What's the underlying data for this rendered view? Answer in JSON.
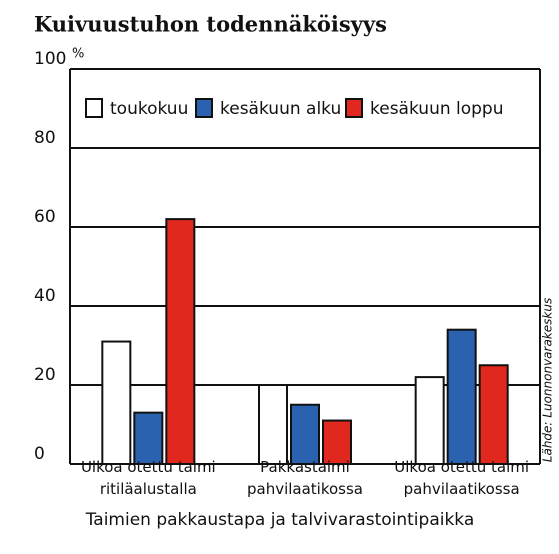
{
  "chart_data": {
    "type": "bar",
    "title": "Kuivuustuhon todennäköisyys",
    "y_label": "%",
    "x_label": "Taimien pakkaustapa ja talvivarastointipaikka",
    "source": "Lähde: Luonnonvarakeskus",
    "categories": [
      "Ulkoa otettu taimi ritiläalustalla",
      "Pakkastaimi pahvilaatikossa",
      "Ulkoa otettu taimi pahvilaatikossa"
    ],
    "series": [
      {
        "name": "toukokuu",
        "color": "#ffffff",
        "values": [
          31,
          20,
          22
        ]
      },
      {
        "name": "kesäkuun alku",
        "color": "#2a62b0",
        "values": [
          13,
          15,
          34
        ]
      },
      {
        "name": "kesäkuun loppu",
        "color": "#e0281e",
        "values": [
          62,
          11,
          25
        ]
      }
    ],
    "ylim": [
      0,
      100
    ],
    "yticks": [
      0,
      20,
      40,
      60,
      80,
      100
    ],
    "grid": true
  }
}
